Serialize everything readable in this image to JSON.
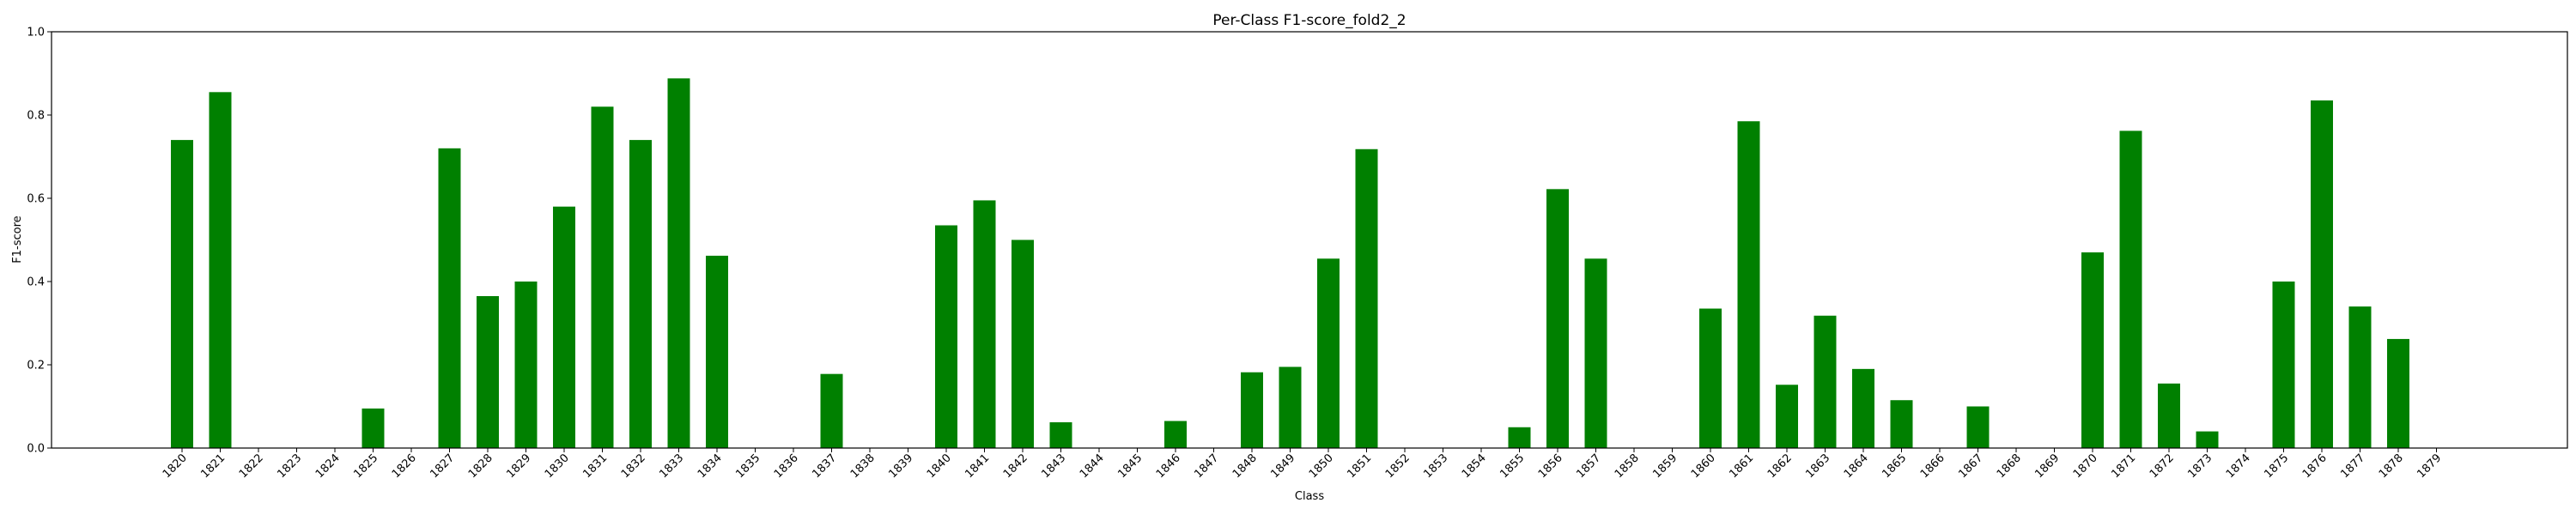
{
  "chart_data": {
    "type": "bar",
    "title": "Per-Class F1-score_fold2_2",
    "xlabel": "Class",
    "ylabel": "F1-score",
    "ylim": [
      0,
      1.0
    ],
    "yticks": [
      "0.0",
      "0.2",
      "0.4",
      "0.6",
      "0.8",
      "1.0"
    ],
    "bar_color": "#008000",
    "grid": false,
    "categories": [
      "1820",
      "1821",
      "1822",
      "1823",
      "1824",
      "1825",
      "1826",
      "1827",
      "1828",
      "1829",
      "1830",
      "1831",
      "1832",
      "1833",
      "1834",
      "1835",
      "1836",
      "1837",
      "1838",
      "1839",
      "1840",
      "1841",
      "1842",
      "1843",
      "1844",
      "1845",
      "1846",
      "1847",
      "1848",
      "1849",
      "1850",
      "1851",
      "1852",
      "1853",
      "1854",
      "1855",
      "1856",
      "1857",
      "1858",
      "1859",
      "1860",
      "1861",
      "1862",
      "1863",
      "1864",
      "1865",
      "1866",
      "1867",
      "1868",
      "1869",
      "1870",
      "1871",
      "1872",
      "1873",
      "1874",
      "1875",
      "1876",
      "1877",
      "1878",
      "1879"
    ],
    "values": [
      0.74,
      0.855,
      0,
      0,
      0,
      0.095,
      0,
      0.72,
      0.365,
      0.4,
      0.58,
      0.82,
      0.74,
      0.888,
      0.462,
      0,
      0,
      0.178,
      0,
      0,
      0.535,
      0.595,
      0.5,
      0.062,
      0,
      0,
      0.065,
      0,
      0.182,
      0.195,
      0.455,
      0.718,
      0,
      0,
      0,
      0.05,
      0.622,
      0.455,
      0,
      0,
      0.335,
      0.785,
      0.152,
      0.318,
      0.19,
      0.115,
      0,
      0.1,
      0,
      0,
      0.47,
      0.762,
      0.155,
      0.04,
      0,
      0.4,
      0.835,
      0.34,
      0.262,
      0
    ]
  }
}
